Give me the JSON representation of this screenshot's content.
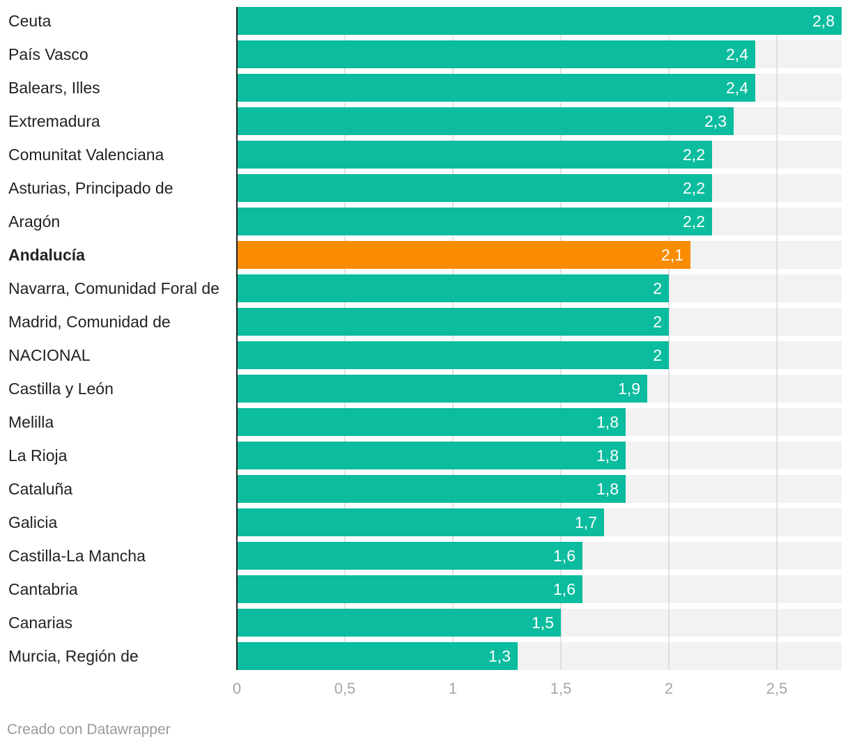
{
  "chart_data": {
    "type": "bar",
    "orientation": "horizontal",
    "categories": [
      "Ceuta",
      "País Vasco",
      "Balears, Illes",
      "Extremadura",
      "Comunitat Valenciana",
      "Asturias, Principado de",
      "Aragón",
      "Andalucía",
      "Navarra, Comunidad Foral de",
      "Madrid, Comunidad de",
      "NACIONAL",
      "Castilla y León",
      "Melilla",
      "La Rioja",
      "Cataluña",
      "Galicia",
      "Castilla-La Mancha",
      "Cantabria",
      "Canarias",
      "Murcia, Región de"
    ],
    "values": [
      2.8,
      2.4,
      2.4,
      2.3,
      2.2,
      2.2,
      2.2,
      2.1,
      2.0,
      2.0,
      2.0,
      1.9,
      1.8,
      1.8,
      1.8,
      1.7,
      1.6,
      1.6,
      1.5,
      1.3
    ],
    "value_labels": [
      "2,8",
      "2,4",
      "2,4",
      "2,3",
      "2,2",
      "2,2",
      "2,2",
      "2,1",
      "2",
      "2",
      "2",
      "1,9",
      "1,8",
      "1,8",
      "1,8",
      "1,7",
      "1,6",
      "1,6",
      "1,5",
      "1,3"
    ],
    "highlight_category": "Andalucía",
    "xlim": [
      0,
      2.8
    ],
    "x_ticks": [
      0,
      0.5,
      1,
      1.5,
      2,
      2.5
    ],
    "x_tick_labels": [
      "0",
      "0,5",
      "1",
      "1,5",
      "2",
      "2,5"
    ],
    "grid": true,
    "colors": {
      "bar": "#0bbc9e",
      "highlight": "#f98c00",
      "track": "#f2f2f2",
      "grid": "#d8d8d8",
      "axis": "#222222"
    },
    "title": "",
    "xlabel": "",
    "ylabel": ""
  },
  "footer": {
    "credit": "Creado con Datawrapper"
  }
}
